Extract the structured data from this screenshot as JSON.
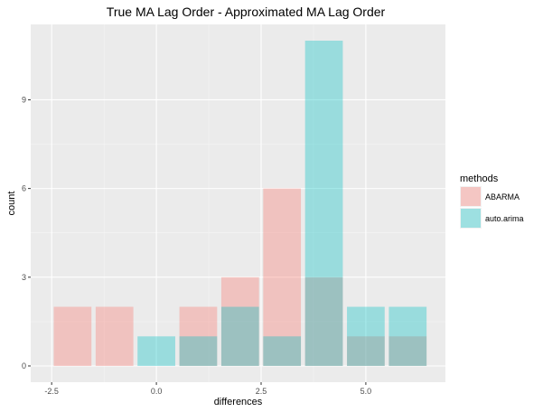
{
  "chart_data": {
    "type": "bar",
    "title": "True MA Lag Order - Approximated MA Lag Order",
    "xlabel": "differences",
    "ylabel": "count",
    "x_ticks": [
      -2.5,
      0,
      2.5,
      5
    ],
    "x_tick_labels": [
      "-2.5",
      "0.0",
      "2.5",
      "5.0"
    ],
    "y_ticks": [
      0,
      3,
      6,
      9
    ],
    "y_tick_labels": [
      "0",
      "3",
      "6",
      "9"
    ],
    "xlim": [
      -3.0,
      6.9
    ],
    "ylim": [
      -0.55,
      11.55
    ],
    "bar_width": 0.9,
    "grid": true,
    "legend_title": "methods",
    "legend_position": "right",
    "series": [
      {
        "name": "ABARMA",
        "color": "#F8766D",
        "points": [
          {
            "x": -2,
            "count": 2
          },
          {
            "x": -1,
            "count": 2
          },
          {
            "x": 1,
            "count": 2
          },
          {
            "x": 2,
            "count": 3
          },
          {
            "x": 3,
            "count": 6
          },
          {
            "x": 4,
            "count": 3
          },
          {
            "x": 5,
            "count": 1
          },
          {
            "x": 6,
            "count": 1
          }
        ]
      },
      {
        "name": "auto.arima",
        "color": "#00BFC4",
        "points": [
          {
            "x": 0,
            "count": 1
          },
          {
            "x": 1,
            "count": 1
          },
          {
            "x": 2,
            "count": 2
          },
          {
            "x": 3,
            "count": 1
          },
          {
            "x": 4,
            "count": 11
          },
          {
            "x": 5,
            "count": 2
          },
          {
            "x": 6,
            "count": 2
          }
        ]
      }
    ]
  }
}
